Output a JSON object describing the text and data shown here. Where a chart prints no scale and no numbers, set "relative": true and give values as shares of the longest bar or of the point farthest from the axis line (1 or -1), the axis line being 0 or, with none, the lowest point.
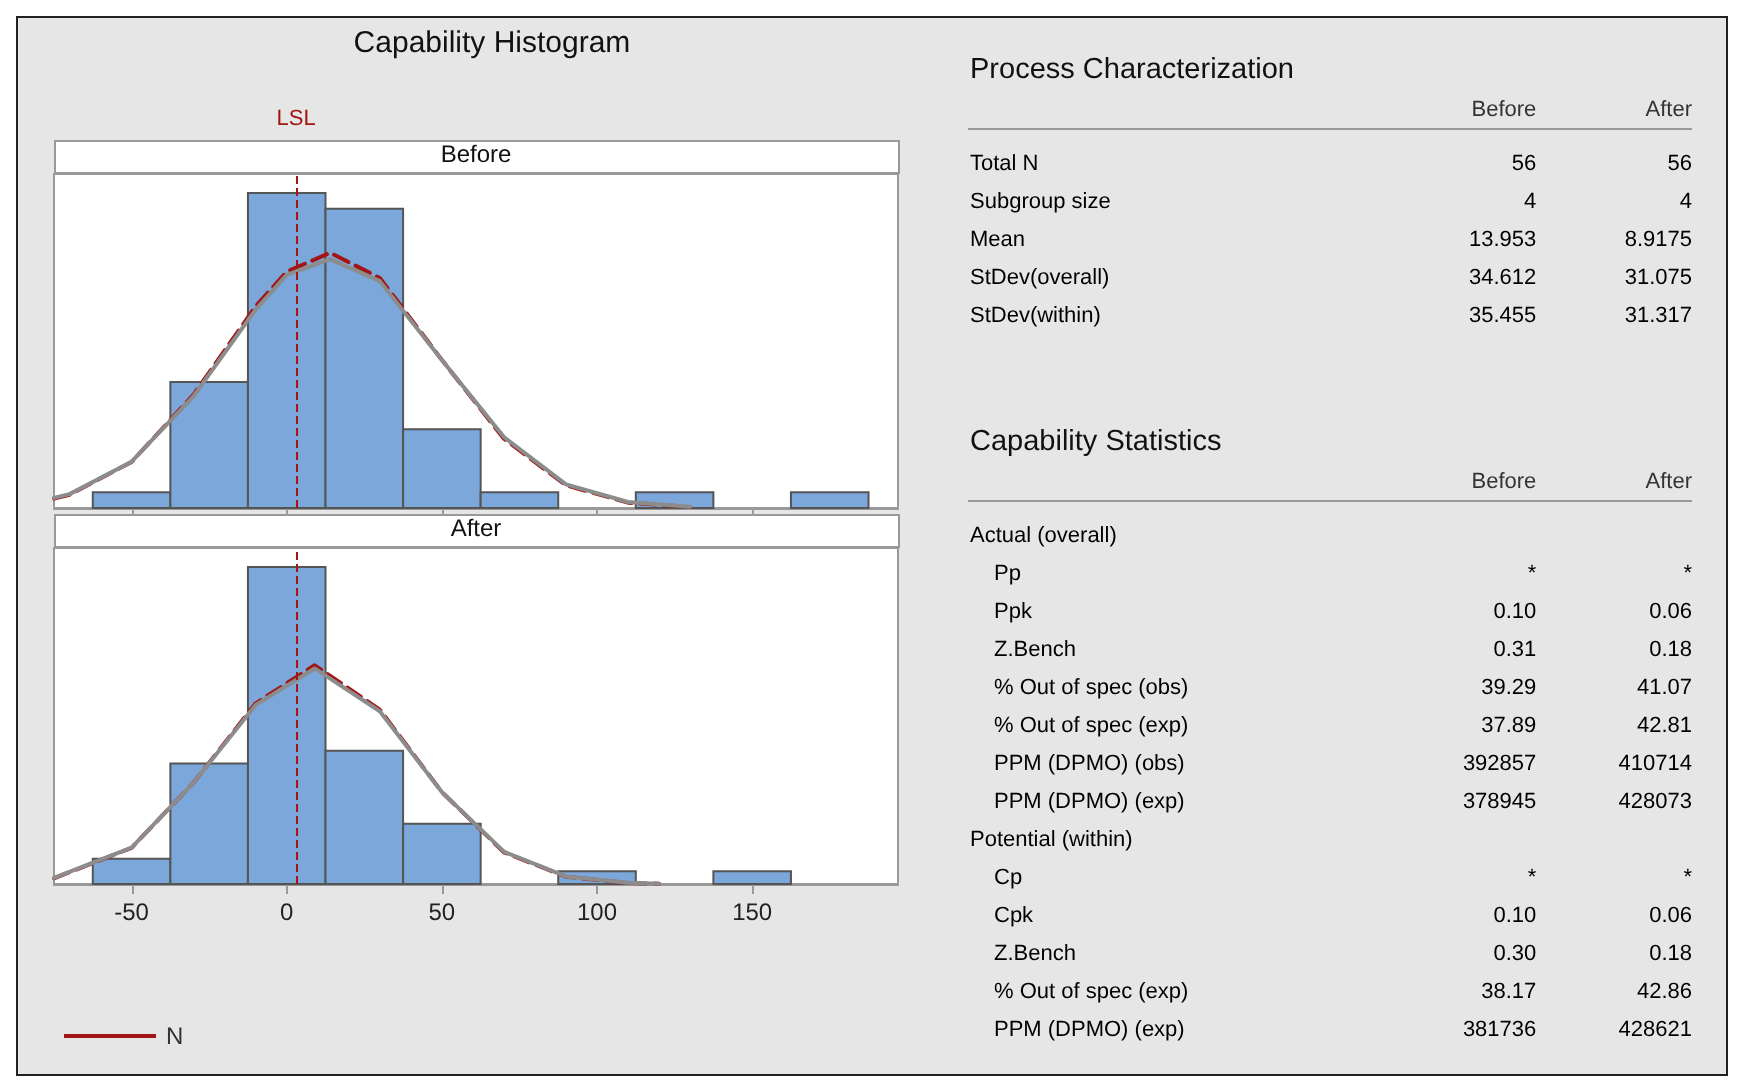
{
  "chart_data": [
    {
      "type": "histogram",
      "title": "Capability Histogram",
      "subtitle": "Before",
      "relative": true,
      "bins": [
        -62.5,
        -37.5,
        -12.5,
        12.5,
        37.5,
        62.5,
        87.5,
        112.5,
        137.5,
        162.5,
        187.5
      ],
      "values": [
        0.05,
        0.4,
        1,
        0.95,
        0.25,
        0.05,
        0,
        0.05,
        0,
        0.05
      ],
      "color": "#7ba7da",
      "series": [
        {
          "type": "line",
          "color": "#a31515",
          "line_style": "dashed",
          "x": [
            -75,
            -70,
            -50,
            -30,
            -10,
            0,
            14,
            30,
            50,
            70,
            90,
            110,
            130
          ],
          "values": [
            0.03,
            0.042,
            0.146,
            0.36,
            0.64,
            0.75,
            0.81,
            0.73,
            0.47,
            0.22,
            0.072,
            0.017,
            0.003
          ]
        },
        {
          "type": "line",
          "color": "#8c8c8c",
          "line_style": "solid",
          "x": [
            -75,
            -70,
            -50,
            -30,
            -10,
            0,
            14,
            30,
            50,
            70,
            90,
            110,
            130
          ],
          "values": [
            0.032,
            0.044,
            0.147,
            0.355,
            0.63,
            0.74,
            0.79,
            0.72,
            0.47,
            0.225,
            0.075,
            0.019,
            0.004
          ]
        }
      ],
      "xlim": [
        -75,
        197
      ],
      "xticks": [
        -50,
        0,
        50,
        100,
        150
      ],
      "tick_labels": false,
      "grid": false,
      "legend": false,
      "ref_lines": [
        {
          "axis": "x",
          "value": 3,
          "label": "LSL",
          "color": "#a31515",
          "line_style": "dashed"
        }
      ]
    },
    {
      "type": "histogram",
      "subtitle": "After",
      "relative": true,
      "bins": [
        -62.5,
        -37.5,
        -12.5,
        12.5,
        37.5,
        62.5,
        87.5,
        112.5,
        137.5,
        162.5,
        187.5
      ],
      "values": [
        0.08,
        0.38,
        1,
        0.42,
        0.19,
        0,
        0.04,
        0,
        0.04,
        0
      ],
      "color": "#7ba7da",
      "series": [
        {
          "type": "line",
          "name": "N",
          "color": "#a31515",
          "line_style": "dashed",
          "x": [
            -75,
            -50,
            -30,
            -10,
            9,
            30,
            50,
            70,
            90,
            110,
            120
          ],
          "values": [
            0.018,
            0.114,
            0.32,
            0.57,
            0.69,
            0.55,
            0.29,
            0.1,
            0.023,
            0.003,
            0.001
          ]
        },
        {
          "type": "line",
          "color": "#8c8c8c",
          "line_style": "solid",
          "x": [
            -75,
            -50,
            -30,
            -10,
            9,
            30,
            50,
            70,
            90,
            110,
            120
          ],
          "values": [
            0.019,
            0.115,
            0.32,
            0.565,
            0.68,
            0.545,
            0.29,
            0.102,
            0.024,
            0.004,
            0.001
          ]
        }
      ],
      "xlim": [
        -75,
        197
      ],
      "xticks": [
        -50,
        0,
        50,
        100,
        150
      ],
      "tick_labels": "x",
      "grid": false,
      "legend": "bottom left",
      "ref_lines": [
        {
          "axis": "x",
          "value": 3,
          "color": "#a31515",
          "line_style": "dashed"
        }
      ]
    },
    {
      "type": "other",
      "title": "Process Characterization",
      "data_labels": true,
      "categories": [
        "Total N",
        "Subgroup size",
        "Mean",
        "StDev(overall)",
        "StDev(within)"
      ],
      "series": [
        {
          "name": "Before",
          "values": [
            56,
            4,
            13.953,
            34.612,
            35.455
          ]
        },
        {
          "name": "After",
          "values": [
            56,
            4,
            8.9175,
            31.075,
            31.317
          ]
        }
      ]
    },
    {
      "type": "other",
      "title": "Capability Statistics",
      "categories": [
        "Actual (overall)",
        "Pp",
        "Ppk",
        "Z.Bench",
        "% Out of spec (obs)",
        "% Out of spec (exp)",
        "PPM (DPMO) (obs)",
        "PPM (DPMO) (exp)",
        "Potential (within)",
        "Cp",
        "Cpk",
        "Z.Bench",
        "% Out of spec (exp)",
        "PPM (DPMO) (exp)"
      ],
      "series": [
        {
          "name": "Before",
          "values": [
            null,
            null,
            0.1,
            0.31,
            39.29,
            37.89,
            392857,
            378945,
            null,
            null,
            0.1,
            0.3,
            38.17,
            381736
          ],
          "value_labels": [
            null,
            "*",
            "0.10",
            "0.31",
            "39.29",
            "37.89",
            "392857",
            "378945",
            null,
            "*",
            "0.10",
            "0.30",
            "38.17",
            "381736"
          ]
        },
        {
          "name": "After",
          "values": [
            null,
            null,
            0.06,
            0.18,
            41.07,
            42.81,
            410714,
            428073,
            null,
            null,
            0.06,
            0.18,
            42.86,
            428621
          ],
          "value_labels": [
            null,
            "*",
            "0.06",
            "0.18",
            "41.07",
            "42.81",
            "410714",
            "428073",
            null,
            "*",
            "0.06",
            "0.18",
            "42.86",
            "428621"
          ]
        }
      ]
    }
  ]
}
